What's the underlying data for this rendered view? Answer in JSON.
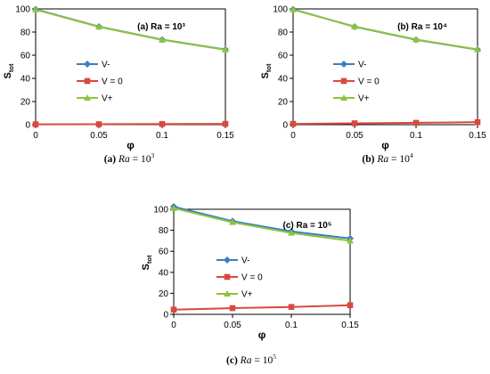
{
  "chart_data": [
    {
      "type": "line",
      "panel": "a",
      "annotation": "(a) Ra = 10³",
      "x": [
        0,
        0.05,
        0.1,
        0.15
      ],
      "xticks": [
        "0",
        "0.05",
        "0.1",
        "0.15"
      ],
      "xlabel": "φ",
      "ylabel_main": "S",
      "ylabel_sub": "tot",
      "ylim": [
        0,
        100
      ],
      "yticks": [
        0,
        20,
        40,
        60,
        80,
        100
      ],
      "grid": false,
      "legend_position": "left-middle",
      "series": [
        {
          "name": "V-",
          "values": [
            99.6,
            84.7,
            73.5,
            64.9
          ],
          "color": "#3a7ec4",
          "marker": "diamond"
        },
        {
          "name": "V = 0",
          "values": [
            0.3,
            0.4,
            0.6,
            0.7
          ],
          "color": "#d9493f",
          "marker": "square"
        },
        {
          "name": "V+",
          "values": [
            99.4,
            84.5,
            73.3,
            64.7
          ],
          "color": "#8ec33e",
          "marker": "triangle"
        }
      ],
      "caption_label": "(a)",
      "caption_var": "Ra",
      "caption_eq": " = 10",
      "caption_exp": "3"
    },
    {
      "type": "line",
      "panel": "b",
      "annotation": "(b) Ra = 10⁴",
      "x": [
        0,
        0.05,
        0.1,
        0.15
      ],
      "xticks": [
        "0",
        "0.05",
        "0.1",
        "0.15"
      ],
      "xlabel": "φ",
      "ylabel_main": "S",
      "ylabel_sub": "tot",
      "ylim": [
        0,
        100
      ],
      "yticks": [
        0,
        20,
        40,
        60,
        80,
        100
      ],
      "grid": false,
      "legend_position": "left-middle",
      "series": [
        {
          "name": "V-",
          "values": [
            99.6,
            84.6,
            73.4,
            64.8
          ],
          "color": "#3a7ec4",
          "marker": "diamond"
        },
        {
          "name": "V = 0",
          "values": [
            0.7,
            1.2,
            1.6,
            2.2
          ],
          "color": "#d9493f",
          "marker": "square"
        },
        {
          "name": "V+",
          "values": [
            99.4,
            84.8,
            73.6,
            65.0
          ],
          "color": "#8ec33e",
          "marker": "triangle"
        }
      ],
      "caption_label": "(b)",
      "caption_var": "Ra",
      "caption_eq": " = 10",
      "caption_exp": "4"
    },
    {
      "type": "line",
      "panel": "c",
      "annotation": "(c) Ra = 10⁵",
      "x": [
        0,
        0.05,
        0.1,
        0.15
      ],
      "xticks": [
        "0",
        "0.05",
        "0.1",
        "0.15"
      ],
      "xlabel": "φ",
      "ylabel_main": "S",
      "ylabel_sub": "tot",
      "ylim": [
        0,
        100
      ],
      "yticks": [
        0,
        20,
        40,
        60,
        80,
        100
      ],
      "grid": false,
      "legend_position": "left-middle",
      "series": [
        {
          "name": "V-",
          "values": [
            102.5,
            88.7,
            78.9,
            72.2
          ],
          "color": "#3a7ec4",
          "marker": "diamond"
        },
        {
          "name": "V = 0",
          "values": [
            4.5,
            5.9,
            7.0,
            8.7
          ],
          "color": "#d9493f",
          "marker": "square"
        },
        {
          "name": "V+",
          "values": [
            101.0,
            87.6,
            77.4,
            70.0
          ],
          "color": "#8ec33e",
          "marker": "triangle"
        }
      ],
      "caption_label": "(c)",
      "caption_var": "Ra",
      "caption_eq": " = 10",
      "caption_exp": "5"
    }
  ]
}
